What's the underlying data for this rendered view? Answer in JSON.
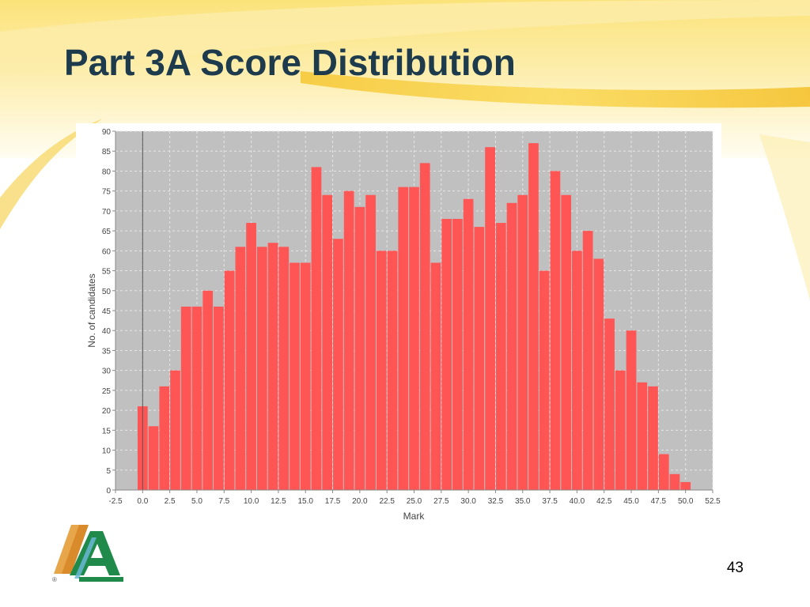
{
  "slide": {
    "title": "Part 3A Score Distribution",
    "page_number": "43",
    "logo_icon": "aqa-style-logo-icon",
    "colors": {
      "title": "#1d3b4c",
      "background_swoosh": "#f8d84a",
      "background_light": "#fdf3c4"
    }
  },
  "chart_data": {
    "type": "bar",
    "title": "",
    "xlabel": "Mark",
    "ylabel": "No. of candidates",
    "xlim": [
      -2.5,
      52.5
    ],
    "ylim": [
      0,
      90
    ],
    "x_ticks": [
      "-2.5",
      "0.0",
      "2.5",
      "5.0",
      "7.5",
      "10.0",
      "12.5",
      "15.0",
      "17.5",
      "20.0",
      "22.5",
      "25.0",
      "27.5",
      "30.0",
      "32.5",
      "35.0",
      "37.5",
      "40.0",
      "42.5",
      "45.0",
      "47.5",
      "50.0",
      "52.5"
    ],
    "y_ticks": [
      "0",
      "5",
      "10",
      "15",
      "20",
      "25",
      "30",
      "35",
      "40",
      "45",
      "50",
      "55",
      "60",
      "65",
      "70",
      "75",
      "80",
      "85",
      "90"
    ],
    "grid": true,
    "bar_color": "#ff5555",
    "plot_background": "#c0c0c0",
    "marks": [
      0,
      1,
      2,
      3,
      4,
      5,
      6,
      7,
      8,
      9,
      10,
      11,
      12,
      13,
      14,
      15,
      16,
      17,
      18,
      19,
      20,
      21,
      22,
      23,
      24,
      25,
      26,
      27,
      28,
      29,
      30,
      31,
      32,
      33,
      34,
      35,
      36,
      37,
      38,
      39,
      40,
      41,
      42,
      43,
      44,
      45,
      46,
      47,
      48,
      49,
      50
    ],
    "values": [
      21,
      16,
      26,
      30,
      46,
      46,
      50,
      46,
      55,
      61,
      67,
      61,
      62,
      61,
      57,
      57,
      81,
      74,
      63,
      75,
      71,
      74,
      60,
      60,
      76,
      76,
      82,
      57,
      68,
      68,
      73,
      66,
      86,
      67,
      72,
      74,
      87,
      55,
      80,
      74,
      60,
      65,
      58,
      43,
      30,
      40,
      27,
      26,
      9,
      4,
      2
    ]
  }
}
